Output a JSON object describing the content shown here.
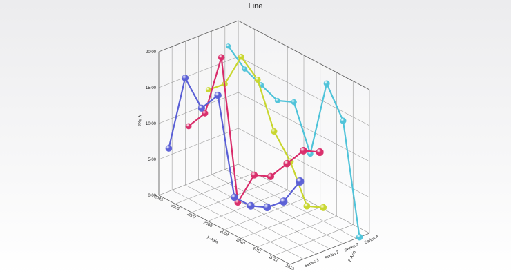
{
  "chart_data": {
    "type": "line",
    "view": "3d",
    "title": "Line",
    "xlabel": "X-Axis",
    "ylabel": "Y-Axis",
    "zlabel": "Z-Axis",
    "categories": [
      "2005",
      "2006",
      "2007",
      "2008",
      "2009",
      "2010",
      "2011",
      "2012",
      "2013"
    ],
    "y_ticks": [
      "0.00",
      "5.00",
      "10.00",
      "15.00",
      "20.00"
    ],
    "ylim": [
      0,
      20
    ],
    "grid": true,
    "series": [
      {
        "name": "Series 1",
        "color": "#4fc3d9",
        "values": [
          17,
          15,
          14,
          13,
          14,
          8,
          19,
          15,
          0
        ]
      },
      {
        "name": "Series 2",
        "color": "#c8d62e",
        "values": [
          12,
          14,
          19,
          17,
          11,
          8,
          3,
          4,
          null
        ]
      },
      {
        "name": "Series 3",
        "color": "#d92c6a",
        "values": [
          8,
          11,
          20,
          1,
          6,
          7,
          10,
          13,
          14
        ]
      },
      {
        "name": "Series 4",
        "color": "#5a5fd6",
        "values": [
          6,
          17,
          14,
          17,
          4,
          4,
          5,
          7,
          11
        ]
      }
    ]
  }
}
